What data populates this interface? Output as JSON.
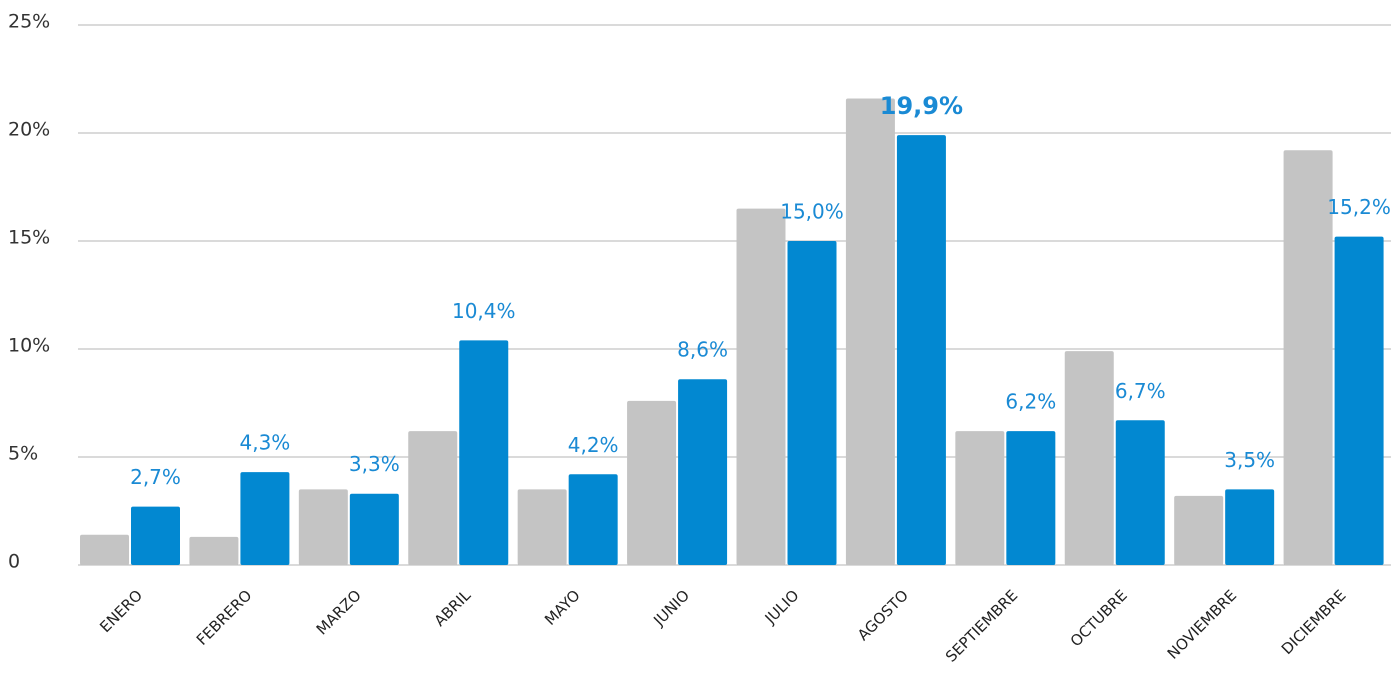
{
  "chart_data": {
    "type": "bar",
    "categories": [
      "ENERO",
      "FEBRERO",
      "MARZO",
      "ABRIL",
      "MAYO",
      "JUNIO",
      "JULIO",
      "AGOSTO",
      "SEPTIEMBRE",
      "OCTUBRE",
      "NOVIEMBRE",
      "DICIEMBRE"
    ],
    "series": [
      {
        "color": "#c4c4c4",
        "values": [
          1.4,
          1.3,
          3.5,
          6.2,
          3.5,
          7.6,
          16.5,
          21.6,
          6.2,
          9.9,
          3.2,
          19.2
        ]
      },
      {
        "color": "#0288d1",
        "values": [
          2.7,
          4.3,
          3.3,
          10.4,
          4.2,
          8.6,
          15.0,
          19.9,
          6.2,
          6.7,
          3.5,
          15.2
        ],
        "value_labels": [
          "2,7%",
          "4,3%",
          "3,3%",
          "10,4%",
          "4,2%",
          "8,6%",
          "15,0%",
          "19,9%",
          "6,2%",
          "6,7%",
          "3,5%",
          "15,2%"
        ]
      }
    ],
    "ylim": [
      0,
      25
    ],
    "yticks": [
      0,
      {
        "value": 5,
        "label": "5%"
      },
      {
        "value": 10,
        "label": "10%"
      },
      {
        "value": 15,
        "label": "15%"
      },
      {
        "value": 20,
        "label": "20%"
      },
      {
        "value": 25,
        "label": "25%"
      }
    ],
    "grid": true
  }
}
